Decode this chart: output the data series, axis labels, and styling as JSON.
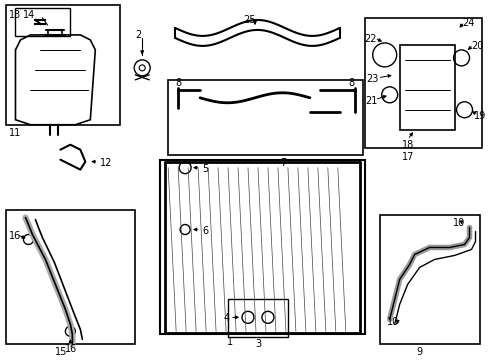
{
  "bg_color": "#ffffff",
  "line_color": "#000000",
  "gray": "#888888",
  "light_gray": "#cccccc",
  "figsize": [
    4.89,
    3.6
  ],
  "dpi": 100
}
